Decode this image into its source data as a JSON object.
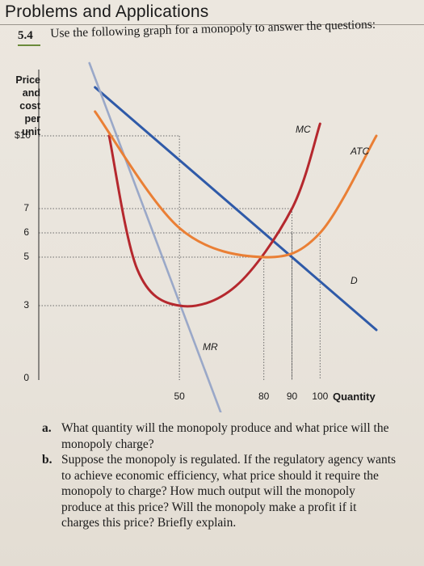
{
  "section": {
    "title": "Problems and Applications"
  },
  "problem": {
    "number": "5.4",
    "text": "Use the following graph for a monopoly to answer the questions:"
  },
  "chart_data": {
    "type": "line",
    "title": "",
    "ylabel": "Price and cost per unit",
    "xlabel": "Quantity",
    "xlim": [
      0,
      120
    ],
    "ylim": [
      0,
      12
    ],
    "y_ticks": [
      "$10",
      "7",
      "6",
      "5",
      "3",
      "0"
    ],
    "y_tick_values": [
      10,
      7,
      6,
      5,
      3,
      0
    ],
    "x_ticks": [
      "50",
      "80",
      "90",
      "100"
    ],
    "x_tick_values": [
      50,
      80,
      90,
      100
    ],
    "series": [
      {
        "name": "D",
        "color": "#2f5aa8",
        "x": [
          20,
          60,
          90,
          120
        ],
        "y": [
          12,
          8,
          5,
          2
        ]
      },
      {
        "name": "MR",
        "color": "#9aa8c8",
        "x": [
          18,
          30,
          50,
          65
        ],
        "y": [
          13,
          9,
          3,
          -1.5
        ]
      },
      {
        "name": "MC",
        "color": "#b5282e",
        "x": [
          25,
          35,
          50,
          70,
          90,
          100
        ],
        "y": [
          10,
          4.5,
          3,
          3.8,
          7,
          10.5
        ]
      },
      {
        "name": "ATC",
        "color": "#ea7f35",
        "x": [
          20,
          50,
          80,
          100,
          120
        ],
        "y": [
          11,
          6.2,
          5,
          6,
          10
        ]
      }
    ],
    "guides": [
      {
        "x": 50,
        "y": 10
      },
      {
        "x": 80,
        "y": 5
      },
      {
        "x": 90,
        "y": 7
      },
      {
        "x": 90,
        "y": 6
      },
      {
        "x": 100,
        "y": 6
      },
      {
        "x": 50,
        "y": 3
      }
    ]
  },
  "questions": [
    {
      "letter": "a.",
      "text": "What quantity will the monopoly produce and what price will the monopoly charge?"
    },
    {
      "letter": "b.",
      "text": "Suppose the monopoly is regulated. If the regulatory agency wants to achieve economic efficiency, what price should it require the monopoly to charge? How much output will the monopoly produce at this price? Will the monopoly make a profit if it charges this price? Briefly explain."
    }
  ],
  "colors": {
    "demand": "#2f5aa8",
    "mr": "#9aa8c8",
    "mc": "#b5282e",
    "atc": "#ea7f35",
    "guide": "#6a6a6a"
  }
}
